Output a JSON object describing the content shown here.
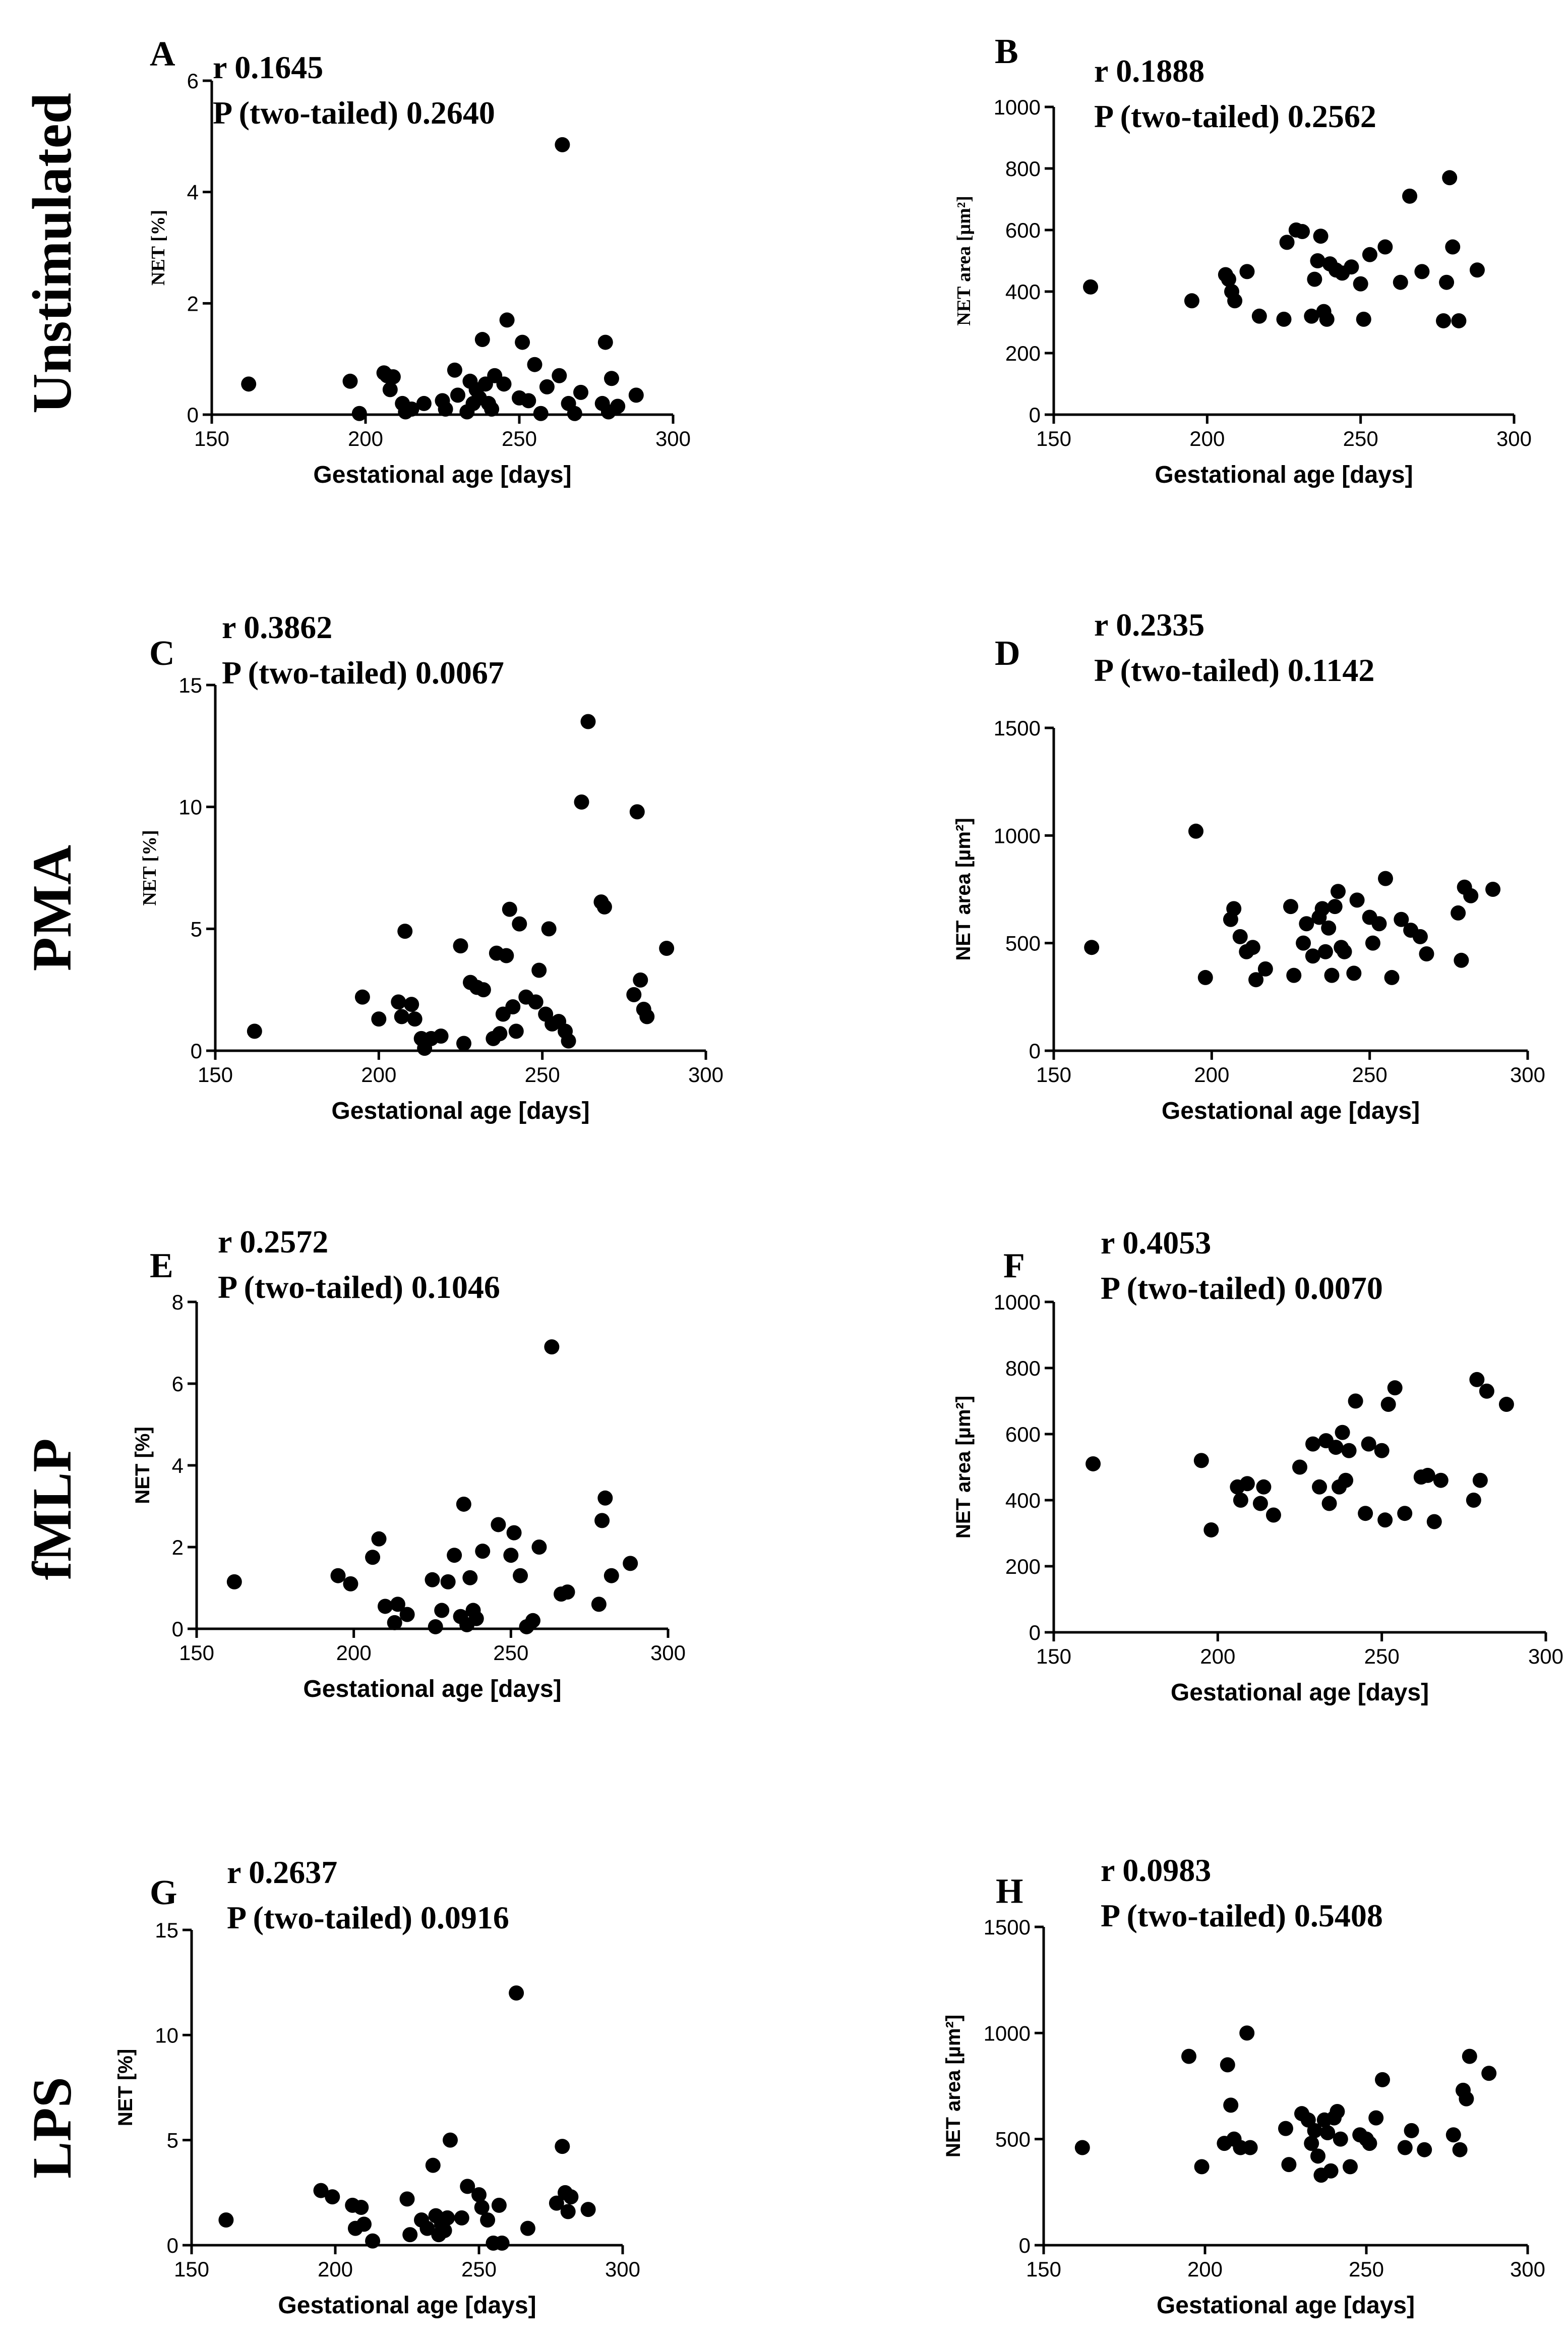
{
  "row_labels": [
    "Unstimulated",
    "PMA",
    "fMLP",
    "LPS"
  ],
  "chart_data": [
    {
      "panel": "A",
      "type": "scatter",
      "stats": {
        "r": "r 0.1645",
        "p": "P (two-tailed) 0.2640"
      },
      "xlabel": "Gestational age [days]",
      "ylabel": "NET [%]",
      "xlim": [
        150,
        300
      ],
      "ylim": [
        0,
        6
      ],
      "xticks": [
        "150",
        "200",
        "250",
        "300"
      ],
      "yticks": [
        "0",
        "2",
        "4",
        "6"
      ],
      "x": [
        162,
        195,
        198,
        206,
        207,
        208,
        209,
        212,
        213,
        215,
        219,
        225,
        226,
        229,
        230,
        233,
        234,
        235,
        236,
        237,
        238,
        239,
        240,
        241,
        242,
        245,
        246,
        250,
        251,
        253,
        255,
        257,
        259,
        263,
        264,
        266,
        268,
        270,
        277,
        278,
        279,
        280,
        282,
        288
      ],
      "y": [
        0.55,
        0.6,
        0.02,
        0.75,
        0.7,
        0.45,
        0.68,
        0.2,
        0.05,
        0.1,
        0.2,
        0.25,
        0.1,
        0.8,
        0.35,
        0.05,
        0.6,
        0.2,
        0.45,
        0.3,
        1.35,
        0.55,
        0.2,
        0.1,
        0.7,
        0.55,
        1.7,
        0.3,
        1.3,
        0.25,
        0.9,
        0.02,
        0.5,
        0.7,
        4.85,
        0.2,
        0.02,
        0.4,
        0.2,
        1.3,
        0.05,
        0.65,
        0.15,
        0.35
      ]
    },
    {
      "panel": "B",
      "type": "scatter",
      "stats": {
        "r": "r 0.1888",
        "p": "P (two-tailed) 0.2562"
      },
      "xlabel": "Gestational age [days]",
      "ylabel": "NET area [µm²]",
      "xlim": [
        150,
        300
      ],
      "ylim": [
        0,
        1000
      ],
      "xticks": [
        "150",
        "200",
        "250",
        "300"
      ],
      "yticks": [
        "0",
        "200",
        "400",
        "600",
        "800",
        "1000"
      ],
      "x": [
        162,
        195,
        206,
        207,
        208,
        209,
        213,
        217,
        225,
        226,
        229,
        231,
        234,
        235,
        236,
        237,
        238,
        239,
        240,
        242,
        244,
        247,
        250,
        251,
        253,
        258,
        263,
        266,
        270,
        277,
        278,
        279,
        280,
        282,
        288
      ],
      "y": [
        415,
        370,
        455,
        440,
        400,
        370,
        465,
        320,
        310,
        560,
        600,
        595,
        320,
        440,
        500,
        580,
        335,
        310,
        490,
        470,
        460,
        480,
        425,
        310,
        520,
        545,
        430,
        710,
        465,
        305,
        430,
        770,
        545,
        305,
        470
      ]
    },
    {
      "panel": "C",
      "type": "scatter",
      "stats": {
        "r": "r 0.3862",
        "p": "P (two-tailed) 0.0067"
      },
      "xlabel": "Gestational age [days]",
      "ylabel": "NET [%]",
      "xlim": [
        150,
        300
      ],
      "ylim": [
        0,
        15
      ],
      "xticks": [
        "150",
        "200",
        "250",
        "300"
      ],
      "yticks": [
        "0",
        "5",
        "10",
        "15"
      ],
      "x": [
        162,
        195,
        200,
        206,
        207,
        208,
        210,
        211,
        213,
        214,
        216,
        219,
        225,
        226,
        228,
        230,
        232,
        235,
        236,
        237,
        238,
        239,
        240,
        241,
        242,
        243,
        245,
        248,
        249,
        251,
        252,
        253,
        255,
        257,
        258,
        262,
        264,
        268,
        269,
        278,
        279,
        280,
        281,
        282,
        288
      ],
      "y": [
        0.8,
        2.2,
        1.3,
        2.0,
        1.4,
        4.9,
        1.9,
        1.3,
        0.5,
        0.1,
        0.5,
        0.6,
        4.3,
        0.3,
        2.8,
        2.6,
        2.5,
        0.5,
        4.0,
        0.7,
        1.5,
        3.9,
        5.8,
        1.8,
        0.8,
        5.2,
        2.2,
        2.0,
        3.3,
        1.5,
        5.0,
        1.1,
        1.2,
        0.8,
        0.4,
        10.2,
        13.5,
        6.1,
        5.9,
        2.3,
        9.8,
        2.9,
        1.7,
        1.4,
        4.2
      ]
    },
    {
      "panel": "D",
      "type": "scatter",
      "stats": {
        "r": "r 0.2335",
        "p": "P (two-tailed) 0.1142"
      },
      "xlabel": "Gestational age [days]",
      "ylabel": "NET area [µm²]",
      "xlim": [
        150,
        300
      ],
      "ylim": [
        0,
        1500
      ],
      "xticks": [
        "150",
        "200",
        "250",
        "300"
      ],
      "yticks": [
        "0",
        "500",
        "1000",
        "1500"
      ],
      "x": [
        162,
        195,
        198,
        206,
        207,
        209,
        211,
        213,
        214,
        217,
        225,
        226,
        229,
        230,
        232,
        234,
        235,
        236,
        237,
        238,
        239,
        240,
        241,
        242,
        245,
        246,
        250,
        251,
        253,
        255,
        257,
        260,
        263,
        266,
        268,
        278,
        279,
        280,
        282,
        289
      ],
      "y": [
        480,
        1020,
        340,
        610,
        660,
        530,
        460,
        480,
        330,
        380,
        670,
        350,
        500,
        590,
        440,
        620,
        660,
        460,
        570,
        350,
        670,
        740,
        480,
        460,
        360,
        700,
        620,
        500,
        590,
        800,
        340,
        610,
        560,
        530,
        450,
        640,
        420,
        760,
        720,
        750
      ]
    },
    {
      "panel": "E",
      "type": "scatter",
      "stats": {
        "r": "r 0.2572",
        "p": "P (two-tailed) 0.1046"
      },
      "xlabel": "Gestational age [days]",
      "ylabel": "NET [%]",
      "xlim": [
        150,
        300
      ],
      "ylim": [
        0,
        8
      ],
      "xticks": [
        "150",
        "200",
        "250",
        "300"
      ],
      "yticks": [
        "0",
        "2",
        "4",
        "6",
        "8"
      ],
      "x": [
        162,
        195,
        199,
        206,
        208,
        210,
        213,
        214,
        217,
        225,
        226,
        228,
        230,
        232,
        234,
        235,
        236,
        237,
        238,
        239,
        241,
        246,
        250,
        251,
        253,
        255,
        257,
        259,
        263,
        266,
        268,
        278,
        279,
        280,
        282,
        288
      ],
      "y": [
        1.15,
        1.3,
        1.1,
        1.75,
        2.2,
        0.55,
        0.15,
        0.6,
        0.35,
        1.2,
        0.05,
        0.45,
        1.15,
        1.8,
        0.3,
        3.05,
        0.1,
        1.25,
        0.45,
        0.25,
        1.9,
        2.55,
        1.8,
        2.35,
        1.3,
        0.05,
        0.2,
        2.0,
        6.9,
        0.85,
        0.9,
        0.6,
        2.65,
        3.2,
        1.3,
        1.6
      ]
    },
    {
      "panel": "F",
      "type": "scatter",
      "stats": {
        "r": "r 0.4053",
        "p": "P (two-tailed) 0.0070"
      },
      "xlabel": "Gestational age [days]",
      "ylabel": "NET area [µm²]",
      "xlim": [
        150,
        300
      ],
      "ylim": [
        0,
        1000
      ],
      "xticks": [
        "150",
        "200",
        "250",
        "300"
      ],
      "yticks": [
        "0",
        "200",
        "400",
        "600",
        "800",
        "1000"
      ],
      "x": [
        162,
        195,
        198,
        206,
        207,
        209,
        213,
        214,
        217,
        225,
        229,
        231,
        233,
        234,
        236,
        237,
        238,
        239,
        240,
        242,
        245,
        246,
        250,
        251,
        252,
        254,
        257,
        262,
        264,
        266,
        268,
        278,
        279,
        280,
        282,
        288
      ],
      "y": [
        510,
        520,
        310,
        440,
        400,
        450,
        390,
        440,
        355,
        500,
        570,
        440,
        580,
        390,
        560,
        440,
        605,
        460,
        550,
        700,
        360,
        570,
        550,
        340,
        690,
        740,
        360,
        470,
        475,
        335,
        460,
        400,
        765,
        460,
        730,
        690
      ]
    },
    {
      "panel": "G",
      "type": "scatter",
      "stats": {
        "r": "r 0.2637",
        "p": "P (two-tailed) 0.0916"
      },
      "xlabel": "Gestational age [days]",
      "ylabel": "NET [%]",
      "xlim": [
        150,
        300
      ],
      "ylim": [
        0,
        15
      ],
      "xticks": [
        "150",
        "200",
        "250",
        "300"
      ],
      "yticks": [
        "0",
        "5",
        "10",
        "15"
      ],
      "x": [
        162,
        195,
        199,
        206,
        207,
        209,
        210,
        213,
        225,
        226,
        230,
        232,
        234,
        235,
        236,
        237,
        238,
        239,
        240,
        244,
        246,
        250,
        251,
        253,
        255,
        257,
        258,
        263,
        267,
        277,
        279,
        280,
        281,
        282,
        288
      ],
      "y": [
        1.2,
        2.6,
        2.3,
        1.9,
        0.8,
        1.8,
        1.0,
        0.2,
        2.2,
        0.5,
        1.2,
        0.8,
        3.8,
        1.4,
        0.5,
        1.0,
        0.7,
        1.3,
        5.0,
        1.3,
        2.8,
        2.4,
        1.8,
        1.2,
        0.1,
        1.9,
        0.1,
        12.0,
        0.8,
        2.0,
        4.7,
        2.5,
        1.6,
        2.3,
        1.7
      ]
    },
    {
      "panel": "H",
      "type": "scatter",
      "stats": {
        "r": "r 0.0983",
        "p": "P (two-tailed) 0.5408"
      },
      "xlabel": "Gestational age [days]",
      "ylabel": "NET area [µm²]",
      "xlim": [
        150,
        300
      ],
      "ylim": [
        0,
        1500
      ],
      "xticks": [
        "150",
        "200",
        "250",
        "300"
      ],
      "yticks": [
        "0",
        "500",
        "1000",
        "1500"
      ],
      "x": [
        162,
        195,
        199,
        206,
        207,
        208,
        209,
        211,
        213,
        214,
        225,
        226,
        230,
        232,
        233,
        234,
        235,
        236,
        237,
        238,
        239,
        240,
        241,
        242,
        245,
        248,
        250,
        251,
        253,
        255,
        262,
        264,
        268,
        277,
        279,
        280,
        281,
        282,
        288
      ],
      "y": [
        460,
        890,
        370,
        480,
        850,
        660,
        500,
        460,
        1000,
        460,
        550,
        380,
        620,
        590,
        480,
        540,
        420,
        330,
        590,
        530,
        350,
        600,
        630,
        500,
        370,
        520,
        500,
        480,
        600,
        780,
        460,
        540,
        450,
        520,
        450,
        730,
        690,
        890,
        810
      ]
    }
  ]
}
